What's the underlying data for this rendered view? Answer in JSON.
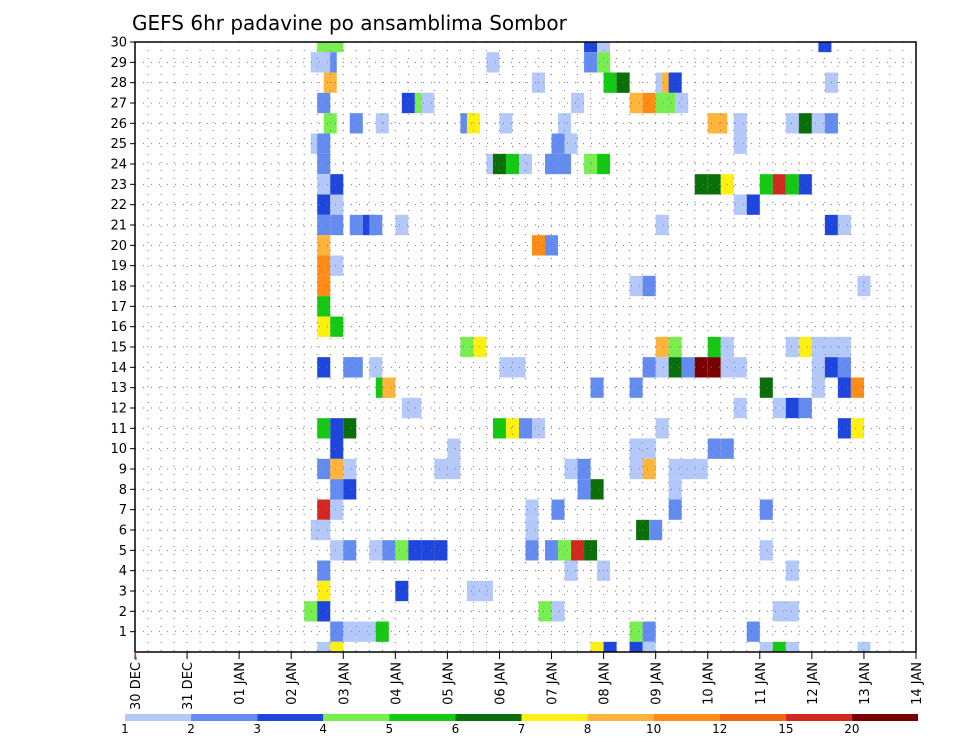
{
  "chart_data": {
    "type": "heatmap",
    "title": "GEFS 6hr padavine po ansamblima Sombor",
    "x_tick_labels": [
      "30 DEC",
      "31 DEC",
      "01 JAN",
      "02 JAN",
      "03 JAN",
      "04 JAN",
      "05 JAN",
      "06 JAN",
      "07 JAN",
      "08 JAN",
      "09 JAN",
      "10 JAN",
      "11 JAN",
      "12 JAN",
      "13 JAN",
      "14 JAN"
    ],
    "y_tick_labels": [
      "1",
      "2",
      "3",
      "4",
      "5",
      "6",
      "7",
      "8",
      "9",
      "10",
      "11",
      "12",
      "13",
      "14",
      "15",
      "16",
      "17",
      "18",
      "19",
      "20",
      "21",
      "22",
      "23",
      "24",
      "25",
      "26",
      "27",
      "28",
      "29",
      "30"
    ],
    "xlim": [
      "30 DEC",
      "14 JAN"
    ],
    "ylim": [
      0,
      30
    ],
    "grid": true,
    "colorbar": {
      "labels": [
        "1",
        "2",
        "3",
        "4",
        "5",
        "6",
        "7",
        "8",
        "10",
        "12",
        "15",
        "20"
      ],
      "colors": [
        "#b4c8fa",
        "#648cf0",
        "#1e46dc",
        "#78ee50",
        "#14c814",
        "#0a6e0a",
        "#fff014",
        "#ffb43c",
        "#ff8c14",
        "#f06414",
        "#d2281e",
        "#780000"
      ]
    },
    "cell_value_note": "values are the 6-hr colour-class indices 1-12 (keys into colorbar.colors), not mm",
    "cells": [
      [
        30,
        3.75,
        1
      ],
      [
        30,
        3.875,
        4
      ],
      [
        30,
        3.625,
        4
      ],
      [
        30,
        8.75,
        3
      ],
      [
        30,
        9,
        1
      ],
      [
        30,
        13.25,
        3
      ],
      [
        29,
        3.5,
        1
      ],
      [
        29,
        3.75,
        2
      ],
      [
        29,
        3.625,
        1
      ],
      [
        29,
        6.875,
        1
      ],
      [
        29,
        8.75,
        2
      ],
      [
        29,
        9,
        4
      ],
      [
        28,
        3.75,
        8
      ],
      [
        28,
        7.75,
        1
      ],
      [
        28,
        9.125,
        5
      ],
      [
        28,
        9.375,
        6
      ],
      [
        28,
        10.125,
        1
      ],
      [
        28,
        10.25,
        8
      ],
      [
        28,
        10.375,
        3
      ],
      [
        28,
        13.375,
        1
      ],
      [
        27,
        3.625,
        2
      ],
      [
        27,
        5.25,
        3
      ],
      [
        27,
        5.5,
        4
      ],
      [
        27,
        5.625,
        1
      ],
      [
        27,
        8.5,
        1
      ],
      [
        27,
        9.625,
        8
      ],
      [
        27,
        9.875,
        9
      ],
      [
        27,
        10.125,
        4
      ],
      [
        27,
        10.25,
        4
      ],
      [
        27,
        10.5,
        1
      ],
      [
        26,
        3.75,
        4
      ],
      [
        26,
        4.25,
        2
      ],
      [
        26,
        4.75,
        1
      ],
      [
        26,
        6.375,
        2
      ],
      [
        26,
        6.5,
        7
      ],
      [
        26,
        7.125,
        1
      ],
      [
        26,
        8.25,
        1
      ],
      [
        26,
        11.125,
        8
      ],
      [
        26,
        11.25,
        8
      ],
      [
        26,
        11.625,
        1
      ],
      [
        26,
        12.625,
        1
      ],
      [
        26,
        12.875,
        6
      ],
      [
        26,
        13.125,
        1
      ],
      [
        26,
        13.375,
        2
      ],
      [
        25,
        3.5,
        1
      ],
      [
        25,
        3.625,
        2
      ],
      [
        25,
        8.125,
        2
      ],
      [
        25,
        8.375,
        1
      ],
      [
        25,
        11.625,
        1
      ],
      [
        24,
        3.625,
        2
      ],
      [
        24,
        6.875,
        1
      ],
      [
        24,
        7,
        6
      ],
      [
        24,
        7.25,
        5
      ],
      [
        24,
        7.5,
        1
      ],
      [
        24,
        8,
        2
      ],
      [
        24,
        8.25,
        2
      ],
      [
        24,
        8.75,
        4
      ],
      [
        24,
        9,
        5
      ],
      [
        23,
        3.625,
        1
      ],
      [
        23,
        3.875,
        3
      ],
      [
        23,
        10.875,
        6
      ],
      [
        23,
        11.125,
        6
      ],
      [
        23,
        11.375,
        7
      ],
      [
        23,
        12.125,
        5
      ],
      [
        23,
        12.375,
        11
      ],
      [
        23,
        12.625,
        5
      ],
      [
        23,
        12.875,
        3
      ],
      [
        22,
        3.625,
        3
      ],
      [
        22,
        3.875,
        1
      ],
      [
        22,
        11.625,
        1
      ],
      [
        22,
        11.875,
        3
      ],
      [
        21,
        3.625,
        2
      ],
      [
        21,
        3.875,
        2
      ],
      [
        21,
        4.25,
        2
      ],
      [
        21,
        4.5,
        3
      ],
      [
        21,
        4.625,
        2
      ],
      [
        21,
        5.125,
        1
      ],
      [
        21,
        10.125,
        1
      ],
      [
        21,
        13.375,
        3
      ],
      [
        21,
        13.625,
        1
      ],
      [
        20,
        3.625,
        8
      ],
      [
        20,
        7.75,
        9
      ],
      [
        20,
        8,
        2
      ],
      [
        19,
        3.625,
        9
      ],
      [
        19,
        3.875,
        1
      ],
      [
        18,
        3.625,
        9
      ],
      [
        18,
        9.625,
        1
      ],
      [
        18,
        9.875,
        2
      ],
      [
        18,
        14,
        1
      ],
      [
        17,
        3.625,
        5
      ],
      [
        16,
        3.625,
        7
      ],
      [
        16,
        3.875,
        5
      ],
      [
        15,
        6.375,
        4
      ],
      [
        15,
        6.625,
        7
      ],
      [
        15,
        10.125,
        8
      ],
      [
        15,
        10.375,
        4
      ],
      [
        15,
        11.125,
        5
      ],
      [
        15,
        11.375,
        1
      ],
      [
        15,
        12.625,
        1
      ],
      [
        15,
        12.875,
        7
      ],
      [
        15,
        13.125,
        1
      ],
      [
        15,
        13.375,
        1
      ],
      [
        15,
        13.625,
        1
      ],
      [
        14,
        3.625,
        3
      ],
      [
        14,
        4.125,
        2
      ],
      [
        14,
        4.25,
        2
      ],
      [
        14,
        4.625,
        1
      ],
      [
        14,
        7.125,
        1
      ],
      [
        14,
        7.375,
        1
      ],
      [
        14,
        9.875,
        2
      ],
      [
        14,
        10.125,
        1
      ],
      [
        14,
        10.375,
        6
      ],
      [
        14,
        10.625,
        2
      ],
      [
        14,
        10.875,
        12
      ],
      [
        14,
        11.125,
        12
      ],
      [
        14,
        11.375,
        1
      ],
      [
        14,
        11.625,
        1
      ],
      [
        14,
        13.125,
        1
      ],
      [
        14,
        13.375,
        3
      ],
      [
        14,
        13.625,
        2
      ],
      [
        13,
        4.75,
        5
      ],
      [
        13,
        4.875,
        8
      ],
      [
        13,
        8.875,
        2
      ],
      [
        13,
        9.625,
        2
      ],
      [
        13,
        12.125,
        6
      ],
      [
        13,
        13.125,
        1
      ],
      [
        13,
        13.625,
        3
      ],
      [
        13,
        13.875,
        9
      ],
      [
        12,
        5.25,
        1
      ],
      [
        12,
        5.375,
        1
      ],
      [
        12,
        11.625,
        1
      ],
      [
        12,
        12.375,
        1
      ],
      [
        12,
        12.625,
        3
      ],
      [
        12,
        12.875,
        2
      ],
      [
        11,
        3.625,
        5
      ],
      [
        11,
        3.875,
        3
      ],
      [
        11,
        4.125,
        6
      ],
      [
        11,
        7,
        5
      ],
      [
        11,
        7.25,
        7
      ],
      [
        11,
        7.5,
        2
      ],
      [
        11,
        7.75,
        1
      ],
      [
        11,
        10.125,
        1
      ],
      [
        11,
        13.625,
        3
      ],
      [
        11,
        13.875,
        7
      ],
      [
        10,
        3.875,
        3
      ],
      [
        10,
        6.125,
        1
      ],
      [
        10,
        9.625,
        1
      ],
      [
        10,
        9.875,
        1
      ],
      [
        10,
        11.125,
        2
      ],
      [
        10,
        11.375,
        2
      ],
      [
        9,
        3.625,
        2
      ],
      [
        9,
        3.875,
        8
      ],
      [
        9,
        4.125,
        1
      ],
      [
        9,
        5.875,
        1
      ],
      [
        9,
        6.125,
        1
      ],
      [
        9,
        8.375,
        1
      ],
      [
        9,
        8.625,
        2
      ],
      [
        9,
        9.625,
        1
      ],
      [
        9,
        9.875,
        8
      ],
      [
        9,
        10.375,
        1
      ],
      [
        9,
        10.625,
        1
      ],
      [
        9,
        10.875,
        1
      ],
      [
        8,
        3.875,
        2
      ],
      [
        8,
        4.125,
        3
      ],
      [
        8,
        8.625,
        2
      ],
      [
        8,
        8.875,
        6
      ],
      [
        8,
        10.375,
        1
      ],
      [
        7,
        3.625,
        11
      ],
      [
        7,
        3.875,
        1
      ],
      [
        7,
        7.625,
        1
      ],
      [
        7,
        8.125,
        2
      ],
      [
        7,
        10.375,
        2
      ],
      [
        7,
        12.125,
        2
      ],
      [
        6,
        3.5,
        1
      ],
      [
        6,
        3.625,
        1
      ],
      [
        6,
        7.625,
        1
      ],
      [
        6,
        9.75,
        6
      ],
      [
        6,
        10,
        2
      ],
      [
        5,
        3.875,
        1
      ],
      [
        5,
        4.125,
        2
      ],
      [
        5,
        4.625,
        1
      ],
      [
        5,
        4.875,
        2
      ],
      [
        5,
        5.125,
        4
      ],
      [
        5,
        5.375,
        3
      ],
      [
        5,
        5.625,
        3
      ],
      [
        5,
        5.875,
        3
      ],
      [
        5,
        7.625,
        2
      ],
      [
        5,
        8,
        2
      ],
      [
        5,
        8.25,
        4
      ],
      [
        5,
        8.5,
        11
      ],
      [
        5,
        8.75,
        6
      ],
      [
        5,
        12.125,
        1
      ],
      [
        4,
        3.625,
        2
      ],
      [
        4,
        8.375,
        1
      ],
      [
        4,
        9,
        1
      ],
      [
        4,
        12.625,
        1
      ],
      [
        3,
        3.625,
        7
      ],
      [
        3,
        5.125,
        3
      ],
      [
        3,
        6.5,
        1
      ],
      [
        3,
        6.75,
        1
      ],
      [
        2,
        3.375,
        4
      ],
      [
        2,
        3.625,
        3
      ],
      [
        2,
        7.875,
        4
      ],
      [
        2,
        8.125,
        1
      ],
      [
        2,
        12.375,
        1
      ],
      [
        2,
        12.625,
        1
      ],
      [
        1,
        3.875,
        2
      ],
      [
        1,
        4.125,
        1
      ],
      [
        1,
        4.375,
        1
      ],
      [
        1,
        4.625,
        1
      ],
      [
        1,
        4.75,
        5
      ],
      [
        1,
        9.625,
        4
      ],
      [
        1,
        9.875,
        2
      ],
      [
        1,
        11.875,
        2
      ],
      [
        0,
        3.625,
        1
      ],
      [
        0,
        3.875,
        7
      ],
      [
        0,
        8.875,
        7
      ],
      [
        0,
        9.125,
        3
      ],
      [
        0,
        9.625,
        3
      ],
      [
        0,
        9.875,
        1
      ],
      [
        0,
        12.125,
        1
      ],
      [
        0,
        12.375,
        5
      ],
      [
        0,
        12.625,
        1
      ],
      [
        0,
        14,
        1
      ]
    ]
  }
}
